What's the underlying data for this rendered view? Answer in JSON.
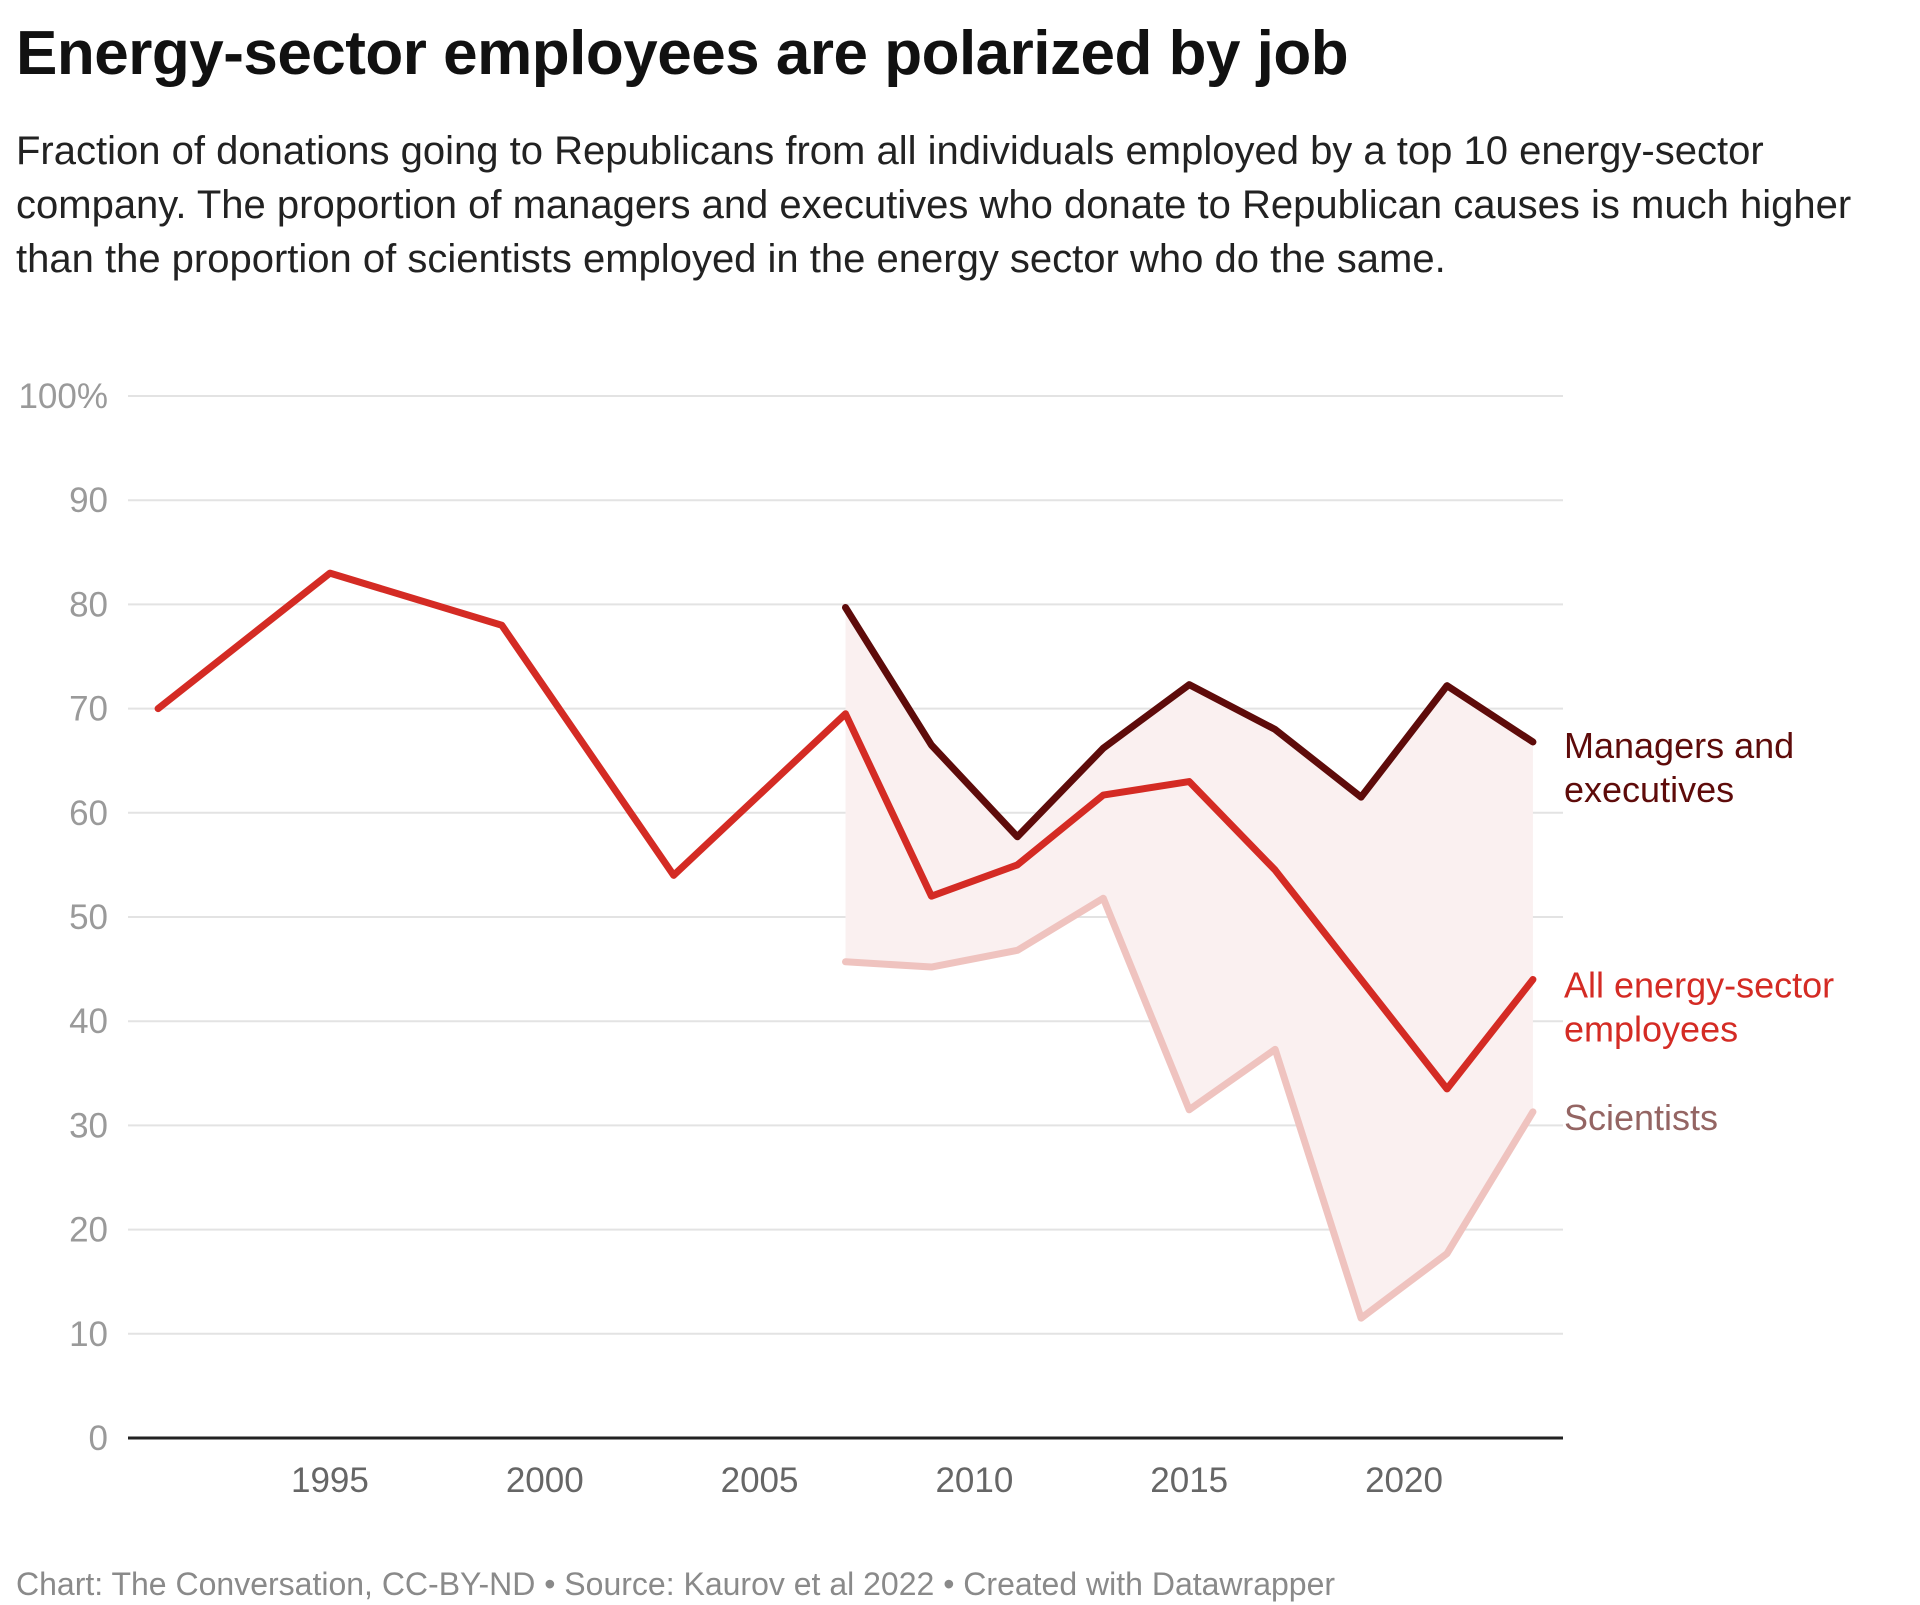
{
  "title": "Energy-sector employees are polarized by job",
  "subtitle": "Fraction of donations going to Republicans from all individuals employed by a top 10 energy-sector company. The proportion of managers and executives who donate to Republican causes is much higher than the proportion of scientists employed in the energy sector who do the same.",
  "footer": "Chart: The Conversation, CC-BY-ND • Source: Kaurov et al 2022 • Created with Datawrapper",
  "chart_data": {
    "type": "line",
    "title": "Energy-sector employees are polarized by job",
    "xlabel": "",
    "ylabel": "",
    "xlim": [
      1990.3,
      2023.7
    ],
    "ylim": [
      0,
      100
    ],
    "grid": true,
    "y_ticks": [
      0,
      10,
      20,
      30,
      40,
      50,
      60,
      70,
      80,
      90,
      100
    ],
    "y_tick_labels": [
      "0",
      "10",
      "20",
      "30",
      "40",
      "50",
      "60",
      "70",
      "80",
      "90",
      "100%"
    ],
    "x_ticks": [
      1995,
      2000,
      2005,
      2010,
      2015,
      2020
    ],
    "x_tick_labels": [
      "1995",
      "2000",
      "2005",
      "2010",
      "2015",
      "2020"
    ],
    "legend_placement": "inline-right",
    "band_between": [
      "Managers and executives",
      "Scientists"
    ],
    "band_color": "#faf0f0",
    "series": [
      {
        "name": "Managers and executives",
        "label_lines": [
          "Managers and",
          "executives"
        ],
        "color": "#5e0b0a",
        "label_color": "#5e0b0a",
        "x": [
          2007,
          2009,
          2011,
          2013,
          2015,
          2017,
          2019,
          2021,
          2023
        ],
        "values": [
          79.7,
          66.5,
          57.7,
          66.2,
          72.3,
          68,
          61.5,
          72.2,
          66.8
        ]
      },
      {
        "name": "All energy-sector employees",
        "label_lines": [
          "All energy-sector",
          "employees"
        ],
        "color": "#d42b24",
        "label_color": "#d42b24",
        "x": [
          1991,
          1995,
          1999,
          2003,
          2007,
          2009,
          2011,
          2013,
          2015,
          2017,
          2019,
          2021,
          2023
        ],
        "values": [
          70,
          83,
          78,
          54,
          69.5,
          52,
          55,
          61.7,
          63,
          54.5,
          44,
          33.5,
          44
        ]
      },
      {
        "name": "Scientists",
        "label_lines": [
          "Scientists"
        ],
        "color": "#efc3bf",
        "label_color": "#946563",
        "x": [
          2007,
          2009,
          2011,
          2013,
          2015,
          2017,
          2019,
          2021,
          2023
        ],
        "values": [
          45.7,
          45.2,
          46.8,
          51.8,
          31.5,
          37.3,
          11.5,
          17.7,
          31.3
        ]
      }
    ]
  }
}
